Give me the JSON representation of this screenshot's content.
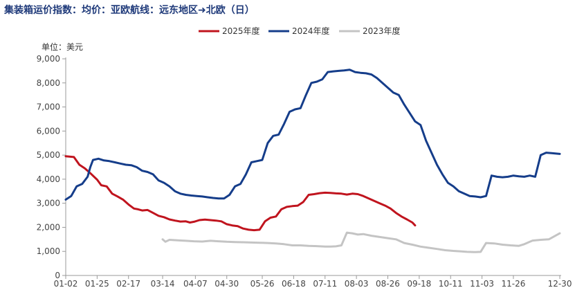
{
  "title": "集装箱运价指数：均价：亚欧航线：远东地区➜北欧（日）",
  "unit_label": "单位：美元",
  "chart_data": {
    "type": "line",
    "title": "集装箱运价指数：均价：亚欧航线：远东地区➜北欧（日）",
    "ylabel": "单位：美元",
    "xlabel": "",
    "ylim": [
      0,
      9000
    ],
    "yticks": [
      0,
      1000,
      2000,
      3000,
      4000,
      5000,
      6000,
      7000,
      8000,
      9000
    ],
    "ytick_labels": [
      "0",
      "1,000",
      "2,000",
      "3,000",
      "4,000",
      "5,000",
      "6,000",
      "7,000",
      "8,000",
      "9,000"
    ],
    "xlim": [
      2,
      365
    ],
    "xticks": [
      2,
      25,
      48,
      73,
      97,
      120,
      146,
      169,
      192,
      215,
      238,
      261,
      284,
      307,
      330,
      364
    ],
    "xtick_labels": [
      "01-02",
      "01-25",
      "02-17",
      "03-14",
      "04-07",
      "04-30",
      "05-26",
      "06-18",
      "07-11",
      "08-03",
      "08-26",
      "09-18",
      "10-11",
      "11-03",
      "11-26",
      "12-30"
    ],
    "grid": false,
    "legend_position": "top",
    "series": [
      {
        "name": "2025年度",
        "color": "#c0141e",
        "x": [
          2,
          8,
          12,
          16,
          20,
          25,
          28,
          32,
          36,
          40,
          44,
          48,
          52,
          55,
          58,
          62,
          66,
          70,
          74,
          78,
          82,
          86,
          90,
          93,
          96,
          100,
          104,
          108,
          112,
          116,
          120,
          124,
          128,
          132,
          136,
          140,
          144,
          148,
          152,
          156,
          160,
          164,
          168,
          172,
          176,
          180,
          184,
          188,
          192,
          196,
          200,
          204,
          208,
          212,
          216,
          220,
          224,
          228,
          232,
          236,
          240,
          244,
          248,
          252,
          256,
          258
        ],
        "y": [
          4950,
          4920,
          4600,
          4450,
          4250,
          3980,
          3750,
          3700,
          3400,
          3280,
          3150,
          2950,
          2780,
          2750,
          2700,
          2720,
          2600,
          2480,
          2420,
          2330,
          2280,
          2240,
          2250,
          2200,
          2230,
          2300,
          2320,
          2300,
          2280,
          2250,
          2130,
          2080,
          2050,
          1950,
          1900,
          1880,
          1900,
          2250,
          2400,
          2450,
          2750,
          2850,
          2880,
          2900,
          3050,
          3350,
          3380,
          3420,
          3440,
          3430,
          3410,
          3400,
          3360,
          3400,
          3380,
          3300,
          3200,
          3100,
          3000,
          2900,
          2780,
          2600,
          2450,
          2330,
          2200,
          2080
        ]
      },
      {
        "name": "2024年度",
        "color": "#153d8a",
        "x": [
          2,
          6,
          10,
          14,
          18,
          20,
          22,
          26,
          30,
          34,
          38,
          42,
          46,
          50,
          54,
          58,
          62,
          66,
          70,
          74,
          78,
          82,
          86,
          90,
          94,
          98,
          102,
          106,
          110,
          114,
          118,
          122,
          126,
          130,
          134,
          138,
          142,
          146,
          150,
          154,
          158,
          162,
          166,
          170,
          174,
          178,
          182,
          186,
          190,
          194,
          198,
          202,
          206,
          210,
          214,
          218,
          222,
          226,
          230,
          234,
          238,
          242,
          246,
          250,
          254,
          258,
          262,
          266,
          270,
          274,
          278,
          282,
          286,
          290,
          294,
          298,
          302,
          306,
          310,
          314,
          318,
          322,
          326,
          330,
          334,
          338,
          342,
          346,
          350,
          354,
          358,
          364
        ],
        "y": [
          3150,
          3300,
          3700,
          3800,
          4100,
          4500,
          4800,
          4850,
          4780,
          4750,
          4700,
          4650,
          4600,
          4580,
          4500,
          4350,
          4300,
          4200,
          3950,
          3850,
          3700,
          3500,
          3400,
          3350,
          3320,
          3300,
          3280,
          3250,
          3220,
          3200,
          3200,
          3350,
          3700,
          3800,
          4200,
          4700,
          4750,
          4800,
          5500,
          5800,
          5850,
          6300,
          6800,
          6900,
          6950,
          7500,
          8000,
          8050,
          8150,
          8450,
          8480,
          8500,
          8520,
          8550,
          8450,
          8420,
          8400,
          8350,
          8200,
          8000,
          7800,
          7600,
          7500,
          7100,
          6750,
          6400,
          6250,
          5600,
          5100,
          4600,
          4200,
          3850,
          3700,
          3500,
          3400,
          3300,
          3280,
          3250,
          3300,
          4150,
          4100,
          4080,
          4100,
          4150,
          4120,
          4100,
          4150,
          4100,
          5000,
          5100,
          5080,
          5050
        ]
      },
      {
        "name": "2023年度",
        "color": "#c4c4c4",
        "x": [
          73,
          75,
          78,
          84,
          90,
          96,
          102,
          108,
          114,
          120,
          126,
          132,
          138,
          144,
          150,
          156,
          162,
          168,
          174,
          180,
          186,
          192,
          196,
          200,
          204,
          208,
          212,
          216,
          220,
          226,
          232,
          238,
          244,
          250,
          256,
          262,
          268,
          274,
          280,
          286,
          292,
          296,
          302,
          306,
          310,
          316,
          322,
          328,
          334,
          338,
          344,
          350,
          356,
          364
        ],
        "y": [
          1500,
          1400,
          1480,
          1460,
          1440,
          1420,
          1410,
          1440,
          1420,
          1400,
          1390,
          1380,
          1370,
          1360,
          1350,
          1330,
          1300,
          1250,
          1250,
          1230,
          1220,
          1200,
          1200,
          1210,
          1250,
          1780,
          1750,
          1700,
          1720,
          1650,
          1600,
          1550,
          1500,
          1350,
          1280,
          1200,
          1150,
          1100,
          1050,
          1020,
          1000,
          980,
          970,
          980,
          1350,
          1330,
          1280,
          1250,
          1230,
          1300,
          1450,
          1480,
          1500,
          1750
        ]
      }
    ]
  }
}
